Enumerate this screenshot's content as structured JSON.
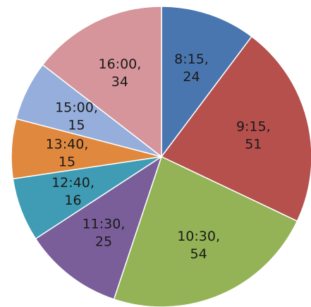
{
  "chart_data": {
    "type": "pie",
    "categories": [
      "8:15",
      "9:15",
      "10:30",
      "11:30",
      "12:40",
      "13:40",
      "15:00",
      "16:00"
    ],
    "values": [
      24,
      51,
      54,
      25,
      16,
      15,
      15,
      34
    ],
    "data_labels": [
      "8:15,",
      "9:15,",
      "10:30,",
      "11:30,",
      "12:40,",
      "13:40,",
      "15:00,",
      "16:00,"
    ],
    "value_labels": [
      "24",
      "51",
      "54",
      "25",
      "16",
      "15",
      "15",
      "34"
    ],
    "colors": [
      "#4a76b0",
      "#b5504d",
      "#93b356",
      "#7a5e9a",
      "#3f9cb4",
      "#e0883e",
      "#96aedb",
      "#d5959a"
    ],
    "start_angle": "12 o'clock",
    "direction": "clockwise",
    "legend": "none",
    "title": ""
  }
}
